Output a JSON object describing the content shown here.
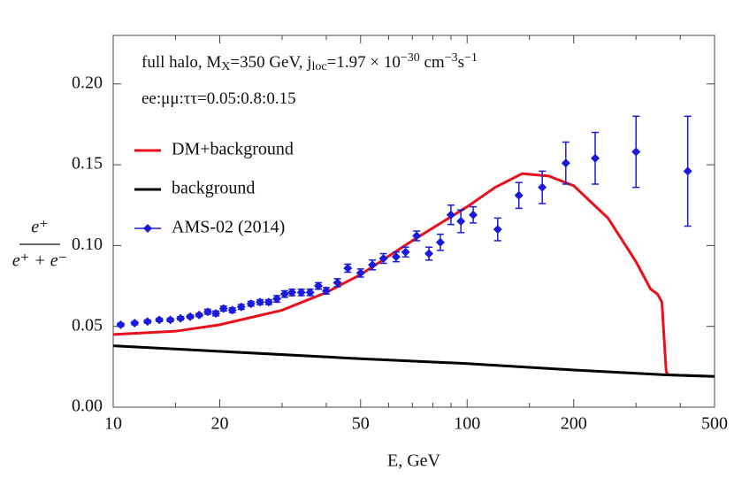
{
  "chart_data": {
    "type": "line",
    "xlabel": "E, GeV",
    "ylabel": {
      "numerator": "e⁺",
      "denominator": "e⁺ + e⁻"
    },
    "annotations": [
      [
        {
          "text": "full halo, M"
        },
        {
          "text": "X",
          "shift": "sub"
        },
        {
          "text": "=350 GeV, j"
        },
        {
          "text": "loc",
          "shift": "sub"
        },
        {
          "text": "=1.97 × 10"
        },
        {
          "text": "−30",
          "shift": "sup"
        },
        {
          "text": " cm"
        },
        {
          "text": "−3",
          "shift": "sup"
        },
        {
          "text": "s"
        },
        {
          "text": "−1",
          "shift": "sup"
        }
      ],
      [
        {
          "text": "ee:μμ:ττ=0.05:0.8:0.15"
        }
      ]
    ],
    "xscale": "log",
    "xlim": [
      10,
      500
    ],
    "ylim": [
      0,
      0.23
    ],
    "xticks": [
      10,
      20,
      50,
      100,
      200,
      500
    ],
    "xminorticks": [
      15,
      30,
      40,
      60,
      70,
      80,
      90,
      150,
      300,
      400
    ],
    "yticks": [
      {
        "value": 0,
        "label": "0.00"
      },
      {
        "value": 0.05,
        "label": "0.05"
      },
      {
        "value": 0.1,
        "label": "0.10"
      },
      {
        "value": 0.15,
        "label": "0.15"
      },
      {
        "value": 0.2,
        "label": "0.20"
      }
    ],
    "legend": "upper left",
    "series": [
      {
        "name": "DM+background",
        "color": "#e8101a",
        "x": [
          10,
          15,
          20,
          30,
          40,
          50,
          70,
          100,
          120,
          143,
          170,
          200,
          250,
          300,
          330,
          345,
          355,
          365,
          370,
          500
        ],
        "values": [
          0.045,
          0.047,
          0.051,
          0.06,
          0.071,
          0.082,
          0.103,
          0.124,
          0.136,
          0.1445,
          0.143,
          0.137,
          0.117,
          0.09,
          0.073,
          0.07,
          0.065,
          0.022,
          0.02,
          0.019
        ]
      },
      {
        "name": "background",
        "color": "#000000",
        "x": [
          10,
          50,
          100,
          200,
          365,
          370,
          500
        ],
        "values": [
          0.038,
          0.03,
          0.027,
          0.023,
          0.02,
          0.02,
          0.019
        ]
      },
      {
        "name": "AMS-02 (2014)",
        "color": "#1a1adc",
        "marker": "diamond",
        "x": [
          10.5,
          11.5,
          12.5,
          13.5,
          14.5,
          15.5,
          16.5,
          17.5,
          18.5,
          19.5,
          20.5,
          21.7,
          23,
          24.5,
          26,
          27.5,
          29,
          30.5,
          32,
          34,
          36,
          38,
          40,
          43,
          46,
          50,
          54,
          58,
          63,
          67,
          72,
          78,
          84,
          90,
          96,
          104,
          122,
          140,
          163,
          190,
          230,
          300,
          420
        ],
        "values": [
          0.051,
          0.052,
          0.053,
          0.054,
          0.054,
          0.055,
          0.056,
          0.057,
          0.059,
          0.058,
          0.061,
          0.06,
          0.062,
          0.064,
          0.065,
          0.065,
          0.067,
          0.07,
          0.071,
          0.071,
          0.071,
          0.075,
          0.072,
          0.077,
          0.086,
          0.083,
          0.088,
          0.092,
          0.093,
          0.096,
          0.106,
          0.095,
          0.102,
          0.119,
          0.115,
          0.119,
          0.11,
          0.131,
          0.136,
          0.151,
          0.154,
          0.158,
          0.146
        ],
        "errors": [
          0.001,
          0.001,
          0.001,
          0.001,
          0.001,
          0.001,
          0.001,
          0.001,
          0.0015,
          0.0015,
          0.0015,
          0.0015,
          0.0015,
          0.0015,
          0.0015,
          0.0015,
          0.002,
          0.002,
          0.002,
          0.002,
          0.002,
          0.002,
          0.002,
          0.0025,
          0.0025,
          0.0025,
          0.003,
          0.003,
          0.003,
          0.003,
          0.003,
          0.004,
          0.005,
          0.006,
          0.007,
          0.005,
          0.007,
          0.008,
          0.01,
          0.013,
          0.016,
          0.022,
          0.034
        ]
      }
    ]
  }
}
